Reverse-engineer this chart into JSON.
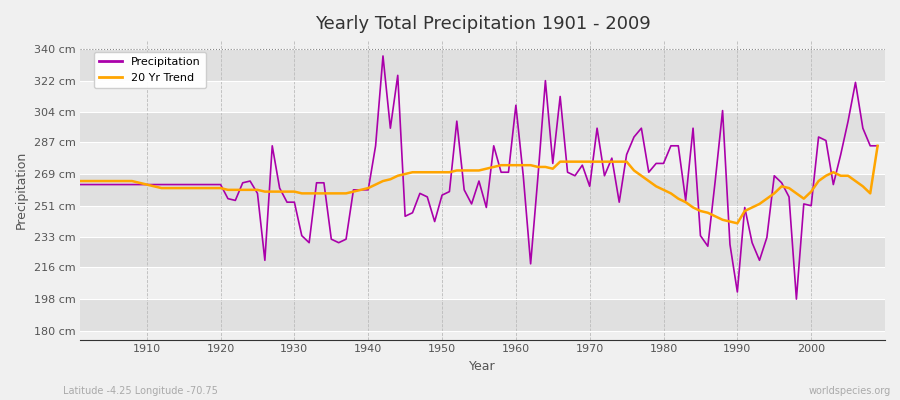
{
  "title": "Yearly Total Precipitation 1901 - 2009",
  "xlabel": "Year",
  "ylabel": "Precipitation",
  "bg_color": "#f0f0f0",
  "plot_bg_color": "#f0f0f0",
  "band_color_light": "#f0f0f0",
  "band_color_dark": "#e0e0e0",
  "line_color": "#aa00aa",
  "trend_color": "#ffa500",
  "ytick_labels": [
    "180 cm",
    "198 cm",
    "216 cm",
    "233 cm",
    "251 cm",
    "269 cm",
    "287 cm",
    "304 cm",
    "322 cm",
    "340 cm"
  ],
  "ytick_values": [
    180,
    198,
    216,
    233,
    251,
    269,
    287,
    304,
    322,
    340
  ],
  "ylim": [
    175,
    345
  ],
  "xlim": [
    1901,
    2010
  ],
  "dotted_line_y": 340,
  "footer_left": "Latitude -4.25 Longitude -70.75",
  "footer_right": "worldspecies.org",
  "years": [
    1901,
    1902,
    1903,
    1904,
    1905,
    1906,
    1907,
    1908,
    1909,
    1910,
    1911,
    1912,
    1913,
    1914,
    1915,
    1916,
    1917,
    1918,
    1919,
    1920,
    1921,
    1922,
    1923,
    1924,
    1925,
    1926,
    1927,
    1928,
    1929,
    1930,
    1931,
    1932,
    1933,
    1934,
    1935,
    1936,
    1937,
    1938,
    1939,
    1940,
    1941,
    1942,
    1943,
    1944,
    1945,
    1946,
    1947,
    1948,
    1949,
    1950,
    1951,
    1952,
    1953,
    1954,
    1955,
    1956,
    1957,
    1958,
    1959,
    1960,
    1961,
    1962,
    1963,
    1964,
    1965,
    1966,
    1967,
    1968,
    1969,
    1970,
    1971,
    1972,
    1973,
    1974,
    1975,
    1976,
    1977,
    1978,
    1979,
    1980,
    1981,
    1982,
    1983,
    1984,
    1985,
    1986,
    1987,
    1988,
    1989,
    1990,
    1991,
    1992,
    1993,
    1994,
    1995,
    1996,
    1997,
    1998,
    1999,
    2000,
    2001,
    2002,
    2003,
    2004,
    2005,
    2006,
    2007,
    2008,
    2009
  ],
  "precip": [
    263,
    263,
    263,
    263,
    263,
    263,
    263,
    263,
    263,
    263,
    263,
    263,
    263,
    263,
    263,
    263,
    263,
    263,
    263,
    263,
    255,
    254,
    264,
    265,
    258,
    220,
    285,
    261,
    253,
    253,
    234,
    230,
    264,
    264,
    232,
    230,
    232,
    260,
    260,
    260,
    285,
    336,
    295,
    325,
    245,
    247,
    258,
    256,
    242,
    257,
    259,
    299,
    260,
    252,
    265,
    250,
    285,
    270,
    270,
    308,
    268,
    218,
    268,
    322,
    275,
    313,
    270,
    268,
    274,
    262,
    295,
    268,
    278,
    253,
    280,
    290,
    295,
    270,
    275,
    275,
    285,
    285,
    254,
    295,
    234,
    228,
    265,
    305,
    229,
    202,
    250,
    230,
    220,
    233,
    268,
    264,
    256,
    198,
    252,
    251,
    290,
    288,
    263,
    280,
    299,
    321,
    295,
    285,
    285
  ],
  "trend": [
    265,
    265,
    265,
    265,
    265,
    265,
    265,
    265,
    264,
    263,
    262,
    261,
    261,
    261,
    261,
    261,
    261,
    261,
    261,
    261,
    260,
    260,
    260,
    260,
    260,
    259,
    259,
    259,
    259,
    259,
    258,
    258,
    258,
    258,
    258,
    258,
    258,
    259,
    260,
    261,
    263,
    265,
    266,
    268,
    269,
    270,
    270,
    270,
    270,
    270,
    270,
    271,
    271,
    271,
    271,
    272,
    273,
    274,
    274,
    274,
    274,
    274,
    273,
    273,
    272,
    276,
    276,
    276,
    276,
    276,
    276,
    276,
    276,
    276,
    276,
    271,
    268,
    265,
    262,
    260,
    258,
    255,
    253,
    250,
    248,
    247,
    245,
    243,
    242,
    241,
    248,
    250,
    252,
    255,
    258,
    262,
    261,
    258,
    255,
    259,
    265,
    268,
    270,
    268,
    268,
    265,
    262,
    258,
    285
  ]
}
